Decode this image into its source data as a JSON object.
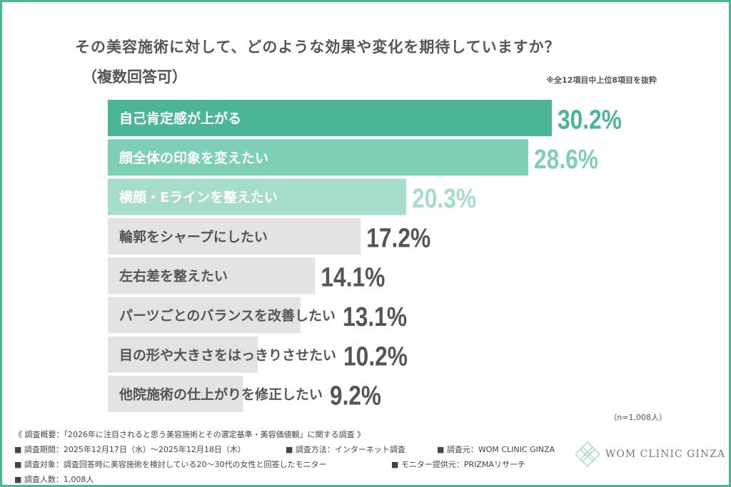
{
  "title_line1": "その美容施術に対して、どのような効果や変化を期待していますか？",
  "title_line2": "（複数回答可）",
  "note": "※全12項目中上位8項目を抜粋",
  "sample_size": "（n=1,008人）",
  "chart_data": {
    "type": "bar",
    "orientation": "horizontal",
    "categories": [
      "自己肯定感が上がる",
      "顔全体の印象を変えたい",
      "横顔・Eラインを整えたい",
      "輪郭をシャープにしたい",
      "左右差を整えたい",
      "パーツごとのバランスを改善したい",
      "目の形や大きさをはっきりさせたい",
      "他院施術の仕上がりを修正したい"
    ],
    "values": [
      30.2,
      28.6,
      20.3,
      17.2,
      14.1,
      13.1,
      10.2,
      9.2
    ],
    "value_labels": [
      "30.2%",
      "28.6%",
      "20.3%",
      "17.2%",
      "14.1%",
      "13.1%",
      "10.2%",
      "9.2%"
    ],
    "bar_colors": [
      "#4bb596",
      "#7dcfb6",
      "#a5dcca",
      "#e3e3e3",
      "#e3e3e3",
      "#e3e3e3",
      "#e3e3e3",
      "#e3e3e3"
    ],
    "value_colors": [
      "#4bb596",
      "#7dcfb6",
      "#a5dcca",
      "#555555",
      "#555555",
      "#555555",
      "#555555",
      "#555555"
    ],
    "label_colors": [
      "#ffffff",
      "#ffffff",
      "#ffffff",
      "#555555",
      "#555555",
      "#555555",
      "#555555",
      "#555555"
    ],
    "unit": "%",
    "grid": false
  },
  "footer": {
    "summary": "《 調査概要：「2026年に注目されると思う美容施術とその選定基準・美容価値観」に関する調査 》",
    "period": "■ 調査期間：2025年12月17日（水）〜2025年12月18日（木）",
    "method": "■ 調査方法：インターネット調査",
    "source": "■ 調査元：WOM CLINIC GINZA",
    "target": "■ 調査対象：調査回答時に美容施術を検討している20〜30代の女性と回答したモニター",
    "provider": "■ モニター提供元：PRIZMAリサーチ",
    "count": "■ 調査人数：1,008人"
  },
  "logo": {
    "text": "WOM CLINIC GINZA",
    "color": "#a5dcca"
  },
  "frame_color": "#4bb596"
}
